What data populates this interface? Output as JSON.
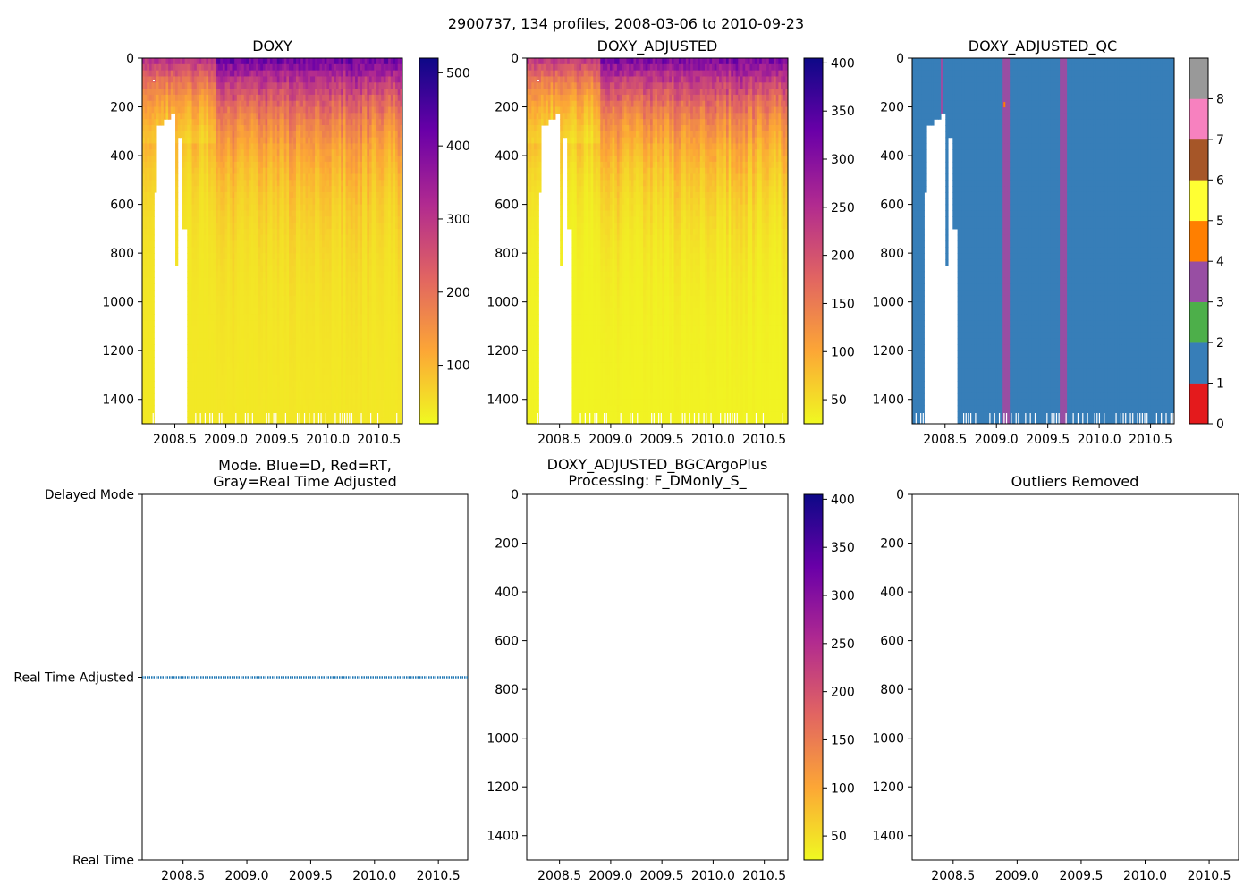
{
  "suptitle": "2900737, 134 profiles, 2008-03-06 to 2010-09-23",
  "colors": {
    "plasma": [
      "#f0f921",
      "#fca636",
      "#e16462",
      "#b12a90",
      "#6a00a8",
      "#0d0887"
    ],
    "mode_line": "#1f77b4",
    "qc": [
      "#e41a1c",
      "#377eb8",
      "#4daf4a",
      "#984ea3",
      "#ff7f00",
      "#ffff33",
      "#a65628",
      "#f781bf",
      "#999999"
    ]
  },
  "chart_data": [
    {
      "id": "doxy",
      "type": "heatmap",
      "title": "DOXY",
      "x_ticks": [
        "2008.5",
        "2009.0",
        "2009.5",
        "2010.0",
        "2010.5"
      ],
      "x_tick_values": [
        2008.5,
        2009.0,
        2009.5,
        2010.0,
        2010.5
      ],
      "xlim": [
        2008.18,
        2010.73
      ],
      "y_ticks": [
        "0",
        "200",
        "400",
        "600",
        "800",
        "1000",
        "1200",
        "1400"
      ],
      "y_tick_values": [
        0,
        200,
        400,
        600,
        800,
        1000,
        1200,
        1400
      ],
      "ylim": [
        1500,
        0
      ],
      "colorbar": {
        "ticks": [
          "100",
          "200",
          "300",
          "400",
          "500"
        ],
        "tick_values": [
          100,
          200,
          300,
          400,
          500
        ],
        "range": [
          20,
          520
        ]
      },
      "surface_value": 450,
      "deep_value": 40
    },
    {
      "id": "doxy_adjusted",
      "type": "heatmap",
      "title": "DOXY_ADJUSTED",
      "x_ticks": [
        "2008.5",
        "2009.0",
        "2009.5",
        "2010.0",
        "2010.5"
      ],
      "x_tick_values": [
        2008.5,
        2009.0,
        2009.5,
        2010.0,
        2010.5
      ],
      "xlim": [
        2008.18,
        2010.73
      ],
      "y_ticks": [
        "0",
        "200",
        "400",
        "600",
        "800",
        "1000",
        "1200",
        "1400"
      ],
      "y_tick_values": [
        0,
        200,
        400,
        600,
        800,
        1000,
        1200,
        1400
      ],
      "ylim": [
        1500,
        0
      ],
      "colorbar": {
        "ticks": [
          "50",
          "100",
          "150",
          "200",
          "250",
          "300",
          "350",
          "400"
        ],
        "tick_values": [
          50,
          100,
          150,
          200,
          250,
          300,
          350,
          400
        ],
        "range": [
          25,
          405
        ]
      },
      "surface_value": 340,
      "deep_value": 30
    },
    {
      "id": "doxy_adjusted_qc",
      "type": "heatmap",
      "title": "DOXY_ADJUSTED_QC",
      "x_ticks": [
        "2008.5",
        "2009.0",
        "2009.5",
        "2010.0",
        "2010.5"
      ],
      "x_tick_values": [
        2008.5,
        2009.0,
        2009.5,
        2010.0,
        2010.5
      ],
      "xlim": [
        2008.18,
        2010.73
      ],
      "y_ticks": [
        "0",
        "200",
        "400",
        "600",
        "800",
        "1000",
        "1200",
        "1400"
      ],
      "y_tick_values": [
        0,
        200,
        400,
        600,
        800,
        1000,
        1200,
        1400
      ],
      "ylim": [
        1500,
        0
      ],
      "dominant_flag": 1,
      "flag3_bands": [
        [
          2008.46,
          2008.49
        ],
        [
          2009.05,
          2009.12
        ],
        [
          2009.62,
          2009.69
        ]
      ],
      "flag4_point": [
        2009.07,
        180
      ],
      "colorbar": {
        "ticks": [
          "0",
          "1",
          "2",
          "3",
          "4",
          "5",
          "6",
          "7",
          "8"
        ],
        "tick_values": [
          0,
          1,
          2,
          3,
          4,
          5,
          6,
          7,
          8
        ],
        "range": [
          0,
          9
        ]
      }
    },
    {
      "id": "mode",
      "type": "line",
      "title_line1": "Mode. Blue=D, Red=RT,",
      "title_line2": "Gray=Real Time Adjusted",
      "y_categories": [
        "Delayed Mode",
        "Real Time Adjusted",
        "Real Time"
      ],
      "x_ticks": [
        "2008.5",
        "2009.0",
        "2009.5",
        "2010.0",
        "2010.5"
      ],
      "x_tick_values": [
        2008.5,
        2009.0,
        2009.5,
        2010.0,
        2010.5
      ],
      "xlim": [
        2008.18,
        2010.73
      ],
      "series": [
        {
          "name": "mode",
          "level": "Real Time Adjusted",
          "x_start": 2008.18,
          "x_end": 2010.73
        }
      ]
    },
    {
      "id": "bgcargoplus",
      "type": "heatmap",
      "title_line1": "DOXY_ADJUSTED_BGCArgoPlus",
      "title_line2": "Processing: F_DMonly_S_",
      "x_ticks": [
        "2008.5",
        "2009.0",
        "2009.5",
        "2010.0",
        "2010.5"
      ],
      "x_tick_values": [
        2008.5,
        2009.0,
        2009.5,
        2010.0,
        2010.5
      ],
      "xlim": [
        2008.18,
        2010.73
      ],
      "y_ticks": [
        "0",
        "200",
        "400",
        "600",
        "800",
        "1000",
        "1200",
        "1400"
      ],
      "y_tick_values": [
        0,
        200,
        400,
        600,
        800,
        1000,
        1200,
        1400
      ],
      "ylim": [
        1500,
        0
      ],
      "colorbar": {
        "ticks": [
          "50",
          "100",
          "150",
          "200",
          "250",
          "300",
          "350",
          "400"
        ],
        "tick_values": [
          50,
          100,
          150,
          200,
          250,
          300,
          350,
          400
        ],
        "range": [
          25,
          405
        ]
      }
    },
    {
      "id": "outliers",
      "type": "scatter",
      "title": "Outliers Removed",
      "x_ticks": [
        "2008.5",
        "2009.0",
        "2009.5",
        "2010.0",
        "2010.5"
      ],
      "x_tick_values": [
        2008.5,
        2009.0,
        2009.5,
        2010.0,
        2010.5
      ],
      "xlim": [
        2008.18,
        2010.73
      ],
      "y_ticks": [
        "0",
        "200",
        "400",
        "600",
        "800",
        "1000",
        "1200",
        "1400"
      ],
      "y_tick_values": [
        0,
        200,
        400,
        600,
        800,
        1000,
        1200,
        1400
      ],
      "ylim": [
        1500,
        0
      ],
      "points": []
    }
  ]
}
